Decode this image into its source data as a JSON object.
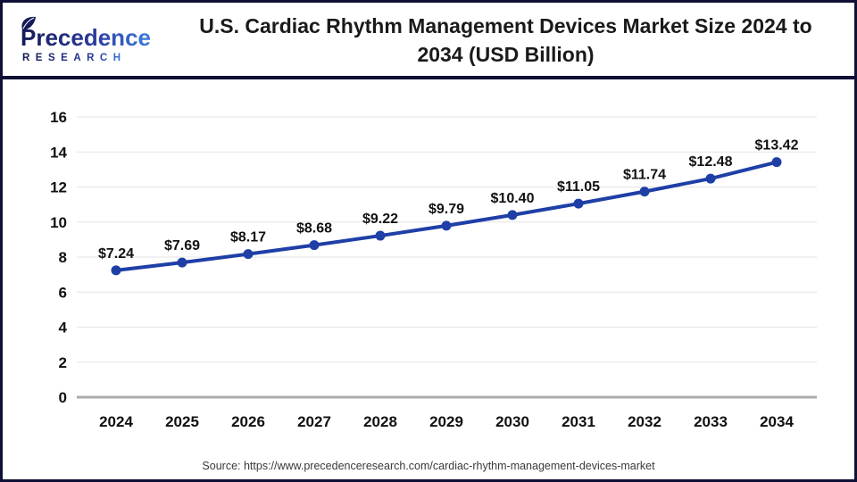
{
  "header": {
    "logo": {
      "brand": "Precedence",
      "sub": "RESEARCH",
      "brand_color_dark": "#141a56",
      "brand_color_light": "#3d7ce0"
    },
    "title_line1": "U.S. Cardiac Rhythm Management Devices Market Size 2024 to",
    "title_line2": "2034 (USD Billion)"
  },
  "chart_data": {
    "type": "line",
    "title": "U.S. Cardiac Rhythm Management Devices Market Size 2024 to 2034 (USD Billion)",
    "categories": [
      "2024",
      "2025",
      "2026",
      "2027",
      "2028",
      "2029",
      "2030",
      "2031",
      "2032",
      "2033",
      "2034"
    ],
    "values": [
      7.24,
      7.69,
      8.17,
      8.68,
      9.22,
      9.79,
      10.4,
      11.05,
      11.74,
      12.48,
      13.42
    ],
    "labels": [
      "$7.24",
      "$7.69",
      "$8.17",
      "$8.68",
      "$9.22",
      "$9.79",
      "$10.40",
      "$11.05",
      "$11.74",
      "$12.48",
      "$13.42"
    ],
    "xlabel": "",
    "ylabel": "",
    "ylim": [
      0,
      16
    ],
    "yticks": [
      0,
      2,
      4,
      6,
      8,
      10,
      12,
      14,
      16
    ],
    "grid": true,
    "legend": "none",
    "line_color": "#1e3fa6",
    "marker_color": "#1e3fa6",
    "gridline_color": "#e4e4e4",
    "axis_line_color": "#ababab",
    "tick_label_color": "#111111",
    "data_label_color": "#111111"
  },
  "footer": {
    "source": "Source: https://www.precedenceresearch.com/cardiac-rhythm-management-devices-market"
  }
}
